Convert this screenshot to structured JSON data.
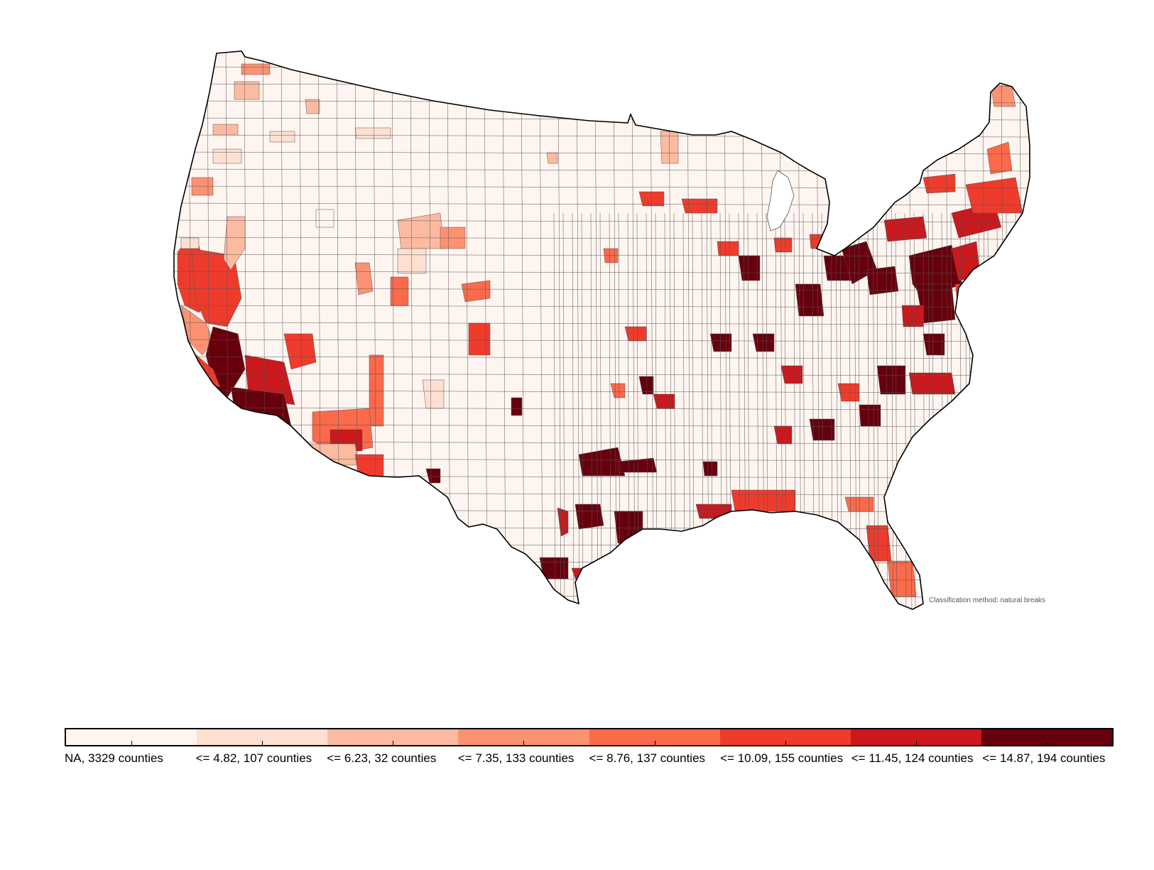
{
  "map": {
    "note": "Classification method: natural breaks"
  },
  "legend": {
    "items": [
      {
        "label": "NA, 3329 counties",
        "color": "#fff5f0"
      },
      {
        "label": "<= 4.82, 107 counties",
        "color": "#fee0d2"
      },
      {
        "label": "<= 6.23, 32 counties",
        "color": "#fcbba1"
      },
      {
        "label": "<= 7.35, 133 counties",
        "color": "#fc9272"
      },
      {
        "label": "<= 8.76, 137 counties",
        "color": "#fb6a4a"
      },
      {
        "label": "<= 10.09, 155 counties",
        "color": "#ef3b2c"
      },
      {
        "label": "<= 11.45, 124 counties",
        "color": "#cb181d"
      },
      {
        "label": "<= 14.87, 194 counties",
        "color": "#67000d"
      }
    ]
  },
  "colors": {
    "outline": "#000000",
    "county_border": "#555555"
  }
}
